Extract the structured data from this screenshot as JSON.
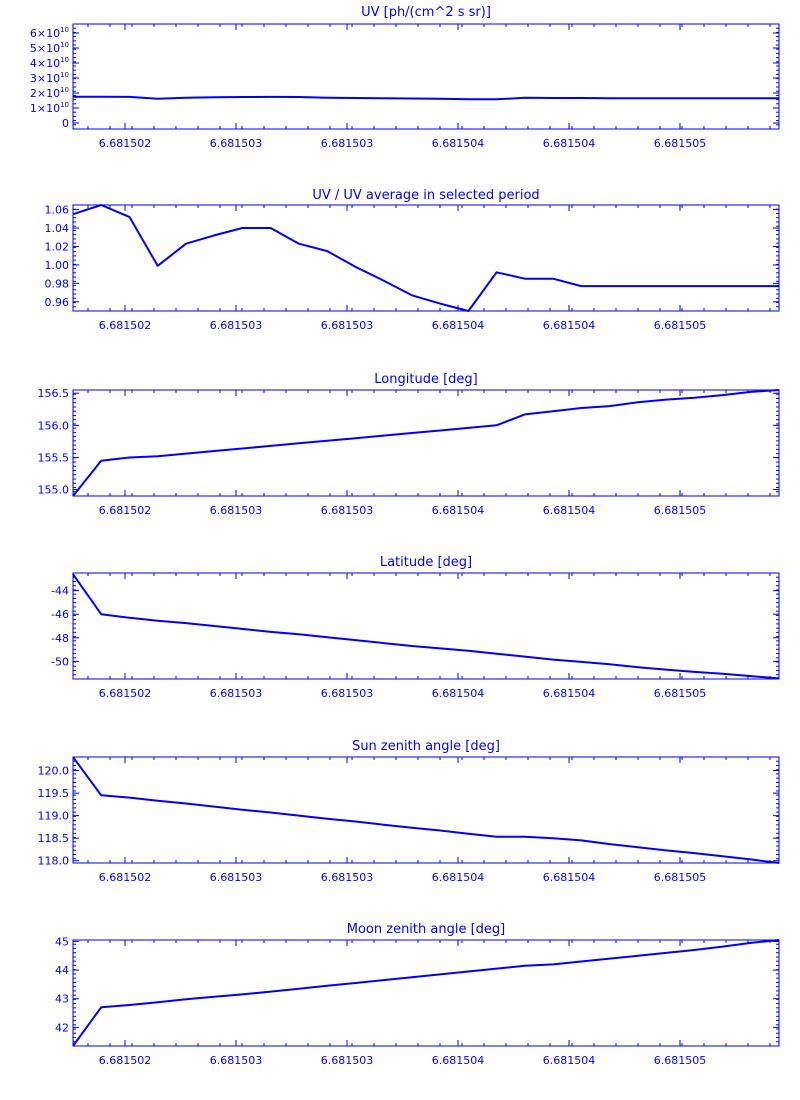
{
  "chart_data": [
    {
      "type": "line",
      "title": "UV [ph/(cm^2 s sr)]",
      "xlabel": "",
      "ylabel": "",
      "xticks": [
        "6.681502",
        "6.681503",
        "6.681503",
        "6.681504",
        "6.681504",
        "6.681505"
      ],
      "yticks": [
        {
          "base": "0",
          "exp": ""
        },
        {
          "base": "1×10",
          "exp": "10"
        },
        {
          "base": "2×10",
          "exp": "10"
        },
        {
          "base": "3×10",
          "exp": "10"
        },
        {
          "base": "4×10",
          "exp": "10"
        },
        {
          "base": "5×10",
          "exp": "10"
        },
        {
          "base": "6×10",
          "exp": "10"
        }
      ],
      "ylim": [
        -4000000000.0,
        66000000000.0
      ],
      "series": [
        {
          "values": [
            17500000000.0,
            17500000000.0,
            17400000000.0,
            16200000000.0,
            16800000000.0,
            17100000000.0,
            17300000000.0,
            17400000000.0,
            17300000000.0,
            16900000000.0,
            16700000000.0,
            16500000000.0,
            16300000000.0,
            16100000000.0,
            15900000000.0,
            15800000000.0,
            16800000000.0,
            16700000000.0,
            16700000000.0,
            16500000000.0,
            16500000000.0,
            16500000000.0,
            16500000000.0,
            16500000000.0,
            16500000000.0,
            16500000000.0
          ]
        }
      ]
    },
    {
      "type": "line",
      "title": "UV / UV average in selected period",
      "xlabel": "",
      "ylabel": "",
      "xticks": [
        "6.681502",
        "6.681503",
        "6.681503",
        "6.681504",
        "6.681504",
        "6.681505"
      ],
      "yticks": [
        {
          "base": "0.96",
          "exp": ""
        },
        {
          "base": "0.98",
          "exp": ""
        },
        {
          "base": "1.00",
          "exp": ""
        },
        {
          "base": "1.02",
          "exp": ""
        },
        {
          "base": "1.04",
          "exp": ""
        },
        {
          "base": "1.06",
          "exp": ""
        }
      ],
      "ylim": [
        0.95,
        1.065
      ],
      "series": [
        {
          "values": [
            1.055,
            1.065,
            1.052,
            0.999,
            1.023,
            1.032,
            1.04,
            1.04,
            1.023,
            1.015,
            0.998,
            0.983,
            0.967,
            0.958,
            0.95,
            0.992,
            0.985,
            0.985,
            0.977,
            0.977,
            0.977,
            0.977,
            0.977,
            0.977,
            0.977,
            0.977
          ]
        }
      ]
    },
    {
      "type": "line",
      "title": "Longitude [deg]",
      "xlabel": "",
      "ylabel": "",
      "xticks": [
        "6.681502",
        "6.681503",
        "6.681503",
        "6.681504",
        "6.681504",
        "6.681505"
      ],
      "yticks": [
        {
          "base": "155.0",
          "exp": ""
        },
        {
          "base": "155.5",
          "exp": ""
        },
        {
          "base": "156.0",
          "exp": ""
        },
        {
          "base": "156.5",
          "exp": ""
        }
      ],
      "ylim": [
        154.9,
        156.55
      ],
      "series": [
        {
          "values": [
            154.9,
            155.45,
            155.5,
            155.52,
            155.56,
            155.6,
            155.64,
            155.68,
            155.72,
            155.76,
            155.8,
            155.84,
            155.88,
            155.92,
            155.96,
            156.0,
            156.17,
            156.22,
            156.27,
            156.3,
            156.36,
            156.4,
            156.43,
            156.47,
            156.52,
            156.55
          ]
        }
      ]
    },
    {
      "type": "line",
      "title": "Latitude [deg]",
      "xlabel": "",
      "ylabel": "",
      "xticks": [
        "6.681502",
        "6.681503",
        "6.681503",
        "6.681504",
        "6.681504",
        "6.681505"
      ],
      "yticks": [
        {
          "base": "-50",
          "exp": ""
        },
        {
          "base": "-48",
          "exp": ""
        },
        {
          "base": "-46",
          "exp": ""
        },
        {
          "base": "-44",
          "exp": ""
        }
      ],
      "ylim": [
        -51.5,
        -42.5
      ],
      "series": [
        {
          "values": [
            -42.6,
            -46.0,
            -46.3,
            -46.55,
            -46.75,
            -47.0,
            -47.25,
            -47.5,
            -47.7,
            -47.95,
            -48.2,
            -48.45,
            -48.7,
            -48.9,
            -49.1,
            -49.35,
            -49.6,
            -49.85,
            -50.05,
            -50.25,
            -50.5,
            -50.7,
            -50.9,
            -51.05,
            -51.25,
            -51.45
          ]
        }
      ]
    },
    {
      "type": "line",
      "title": "Sun zenith angle [deg]",
      "xlabel": "",
      "ylabel": "",
      "xticks": [
        "6.681502",
        "6.681503",
        "6.681503",
        "6.681504",
        "6.681504",
        "6.681505"
      ],
      "yticks": [
        {
          "base": "118.0",
          "exp": ""
        },
        {
          "base": "118.5",
          "exp": ""
        },
        {
          "base": "119.0",
          "exp": ""
        },
        {
          "base": "119.5",
          "exp": ""
        },
        {
          "base": "120.0",
          "exp": ""
        }
      ],
      "ylim": [
        117.95,
        120.3
      ],
      "series": [
        {
          "values": [
            120.3,
            119.45,
            119.4,
            119.33,
            119.27,
            119.2,
            119.13,
            119.07,
            119.0,
            118.93,
            118.87,
            118.8,
            118.73,
            118.67,
            118.6,
            118.53,
            118.53,
            118.5,
            118.45,
            118.37,
            118.3,
            118.23,
            118.17,
            118.1,
            118.03,
            117.95
          ]
        }
      ]
    },
    {
      "type": "line",
      "title": "Moon zenith angle [deg]",
      "xlabel": "",
      "ylabel": "",
      "xticks": [
        "6.681502",
        "6.681503",
        "6.681503",
        "6.681504",
        "6.681504",
        "6.681505"
      ],
      "yticks": [
        {
          "base": "42",
          "exp": ""
        },
        {
          "base": "43",
          "exp": ""
        },
        {
          "base": "44",
          "exp": ""
        },
        {
          "base": "45",
          "exp": ""
        }
      ],
      "ylim": [
        41.35,
        45.05
      ],
      "series": [
        {
          "values": [
            41.35,
            42.7,
            42.78,
            42.88,
            42.98,
            43.07,
            43.15,
            43.25,
            43.35,
            43.45,
            43.55,
            43.65,
            43.75,
            43.85,
            43.95,
            44.05,
            44.15,
            44.2,
            44.3,
            44.4,
            44.5,
            44.6,
            44.7,
            44.82,
            44.95,
            45.05
          ]
        }
      ]
    }
  ]
}
